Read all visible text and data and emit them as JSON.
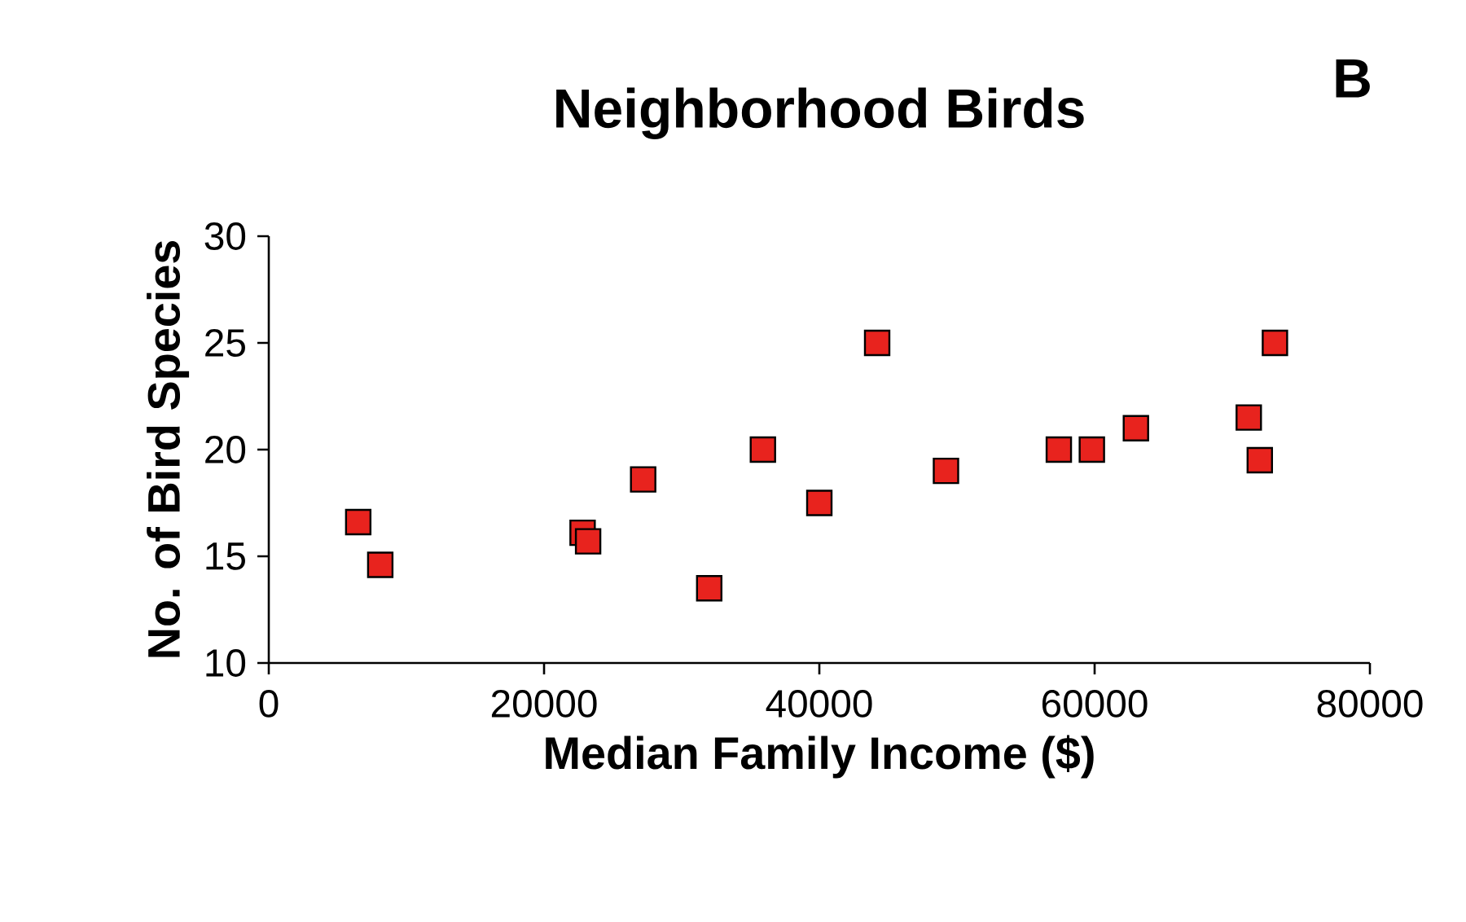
{
  "chart_data": {
    "type": "scatter",
    "title": "Neighborhood Birds",
    "xlabel": "Median Family Income ($)",
    "ylabel": "No. of Bird Species",
    "annotations": [
      "B"
    ],
    "x": [
      6500,
      8100,
      22800,
      23200,
      27200,
      32000,
      35900,
      40000,
      44200,
      49200,
      57400,
      59800,
      63000,
      71200,
      72000,
      73100
    ],
    "values": [
      16.6,
      14.6,
      16.1,
      15.7,
      18.6,
      13.5,
      20.0,
      17.5,
      25.0,
      19.0,
      20.0,
      20.0,
      21.0,
      21.5,
      19.5,
      25.0
    ],
    "color": "#e8231e",
    "marker": "square",
    "xlim": [
      0,
      80000
    ],
    "xticks": [
      0,
      20000,
      40000,
      60000,
      80000
    ],
    "ylim": [
      10,
      30
    ],
    "yticks": [
      10,
      15,
      20,
      25,
      30
    ],
    "grid": false
  }
}
